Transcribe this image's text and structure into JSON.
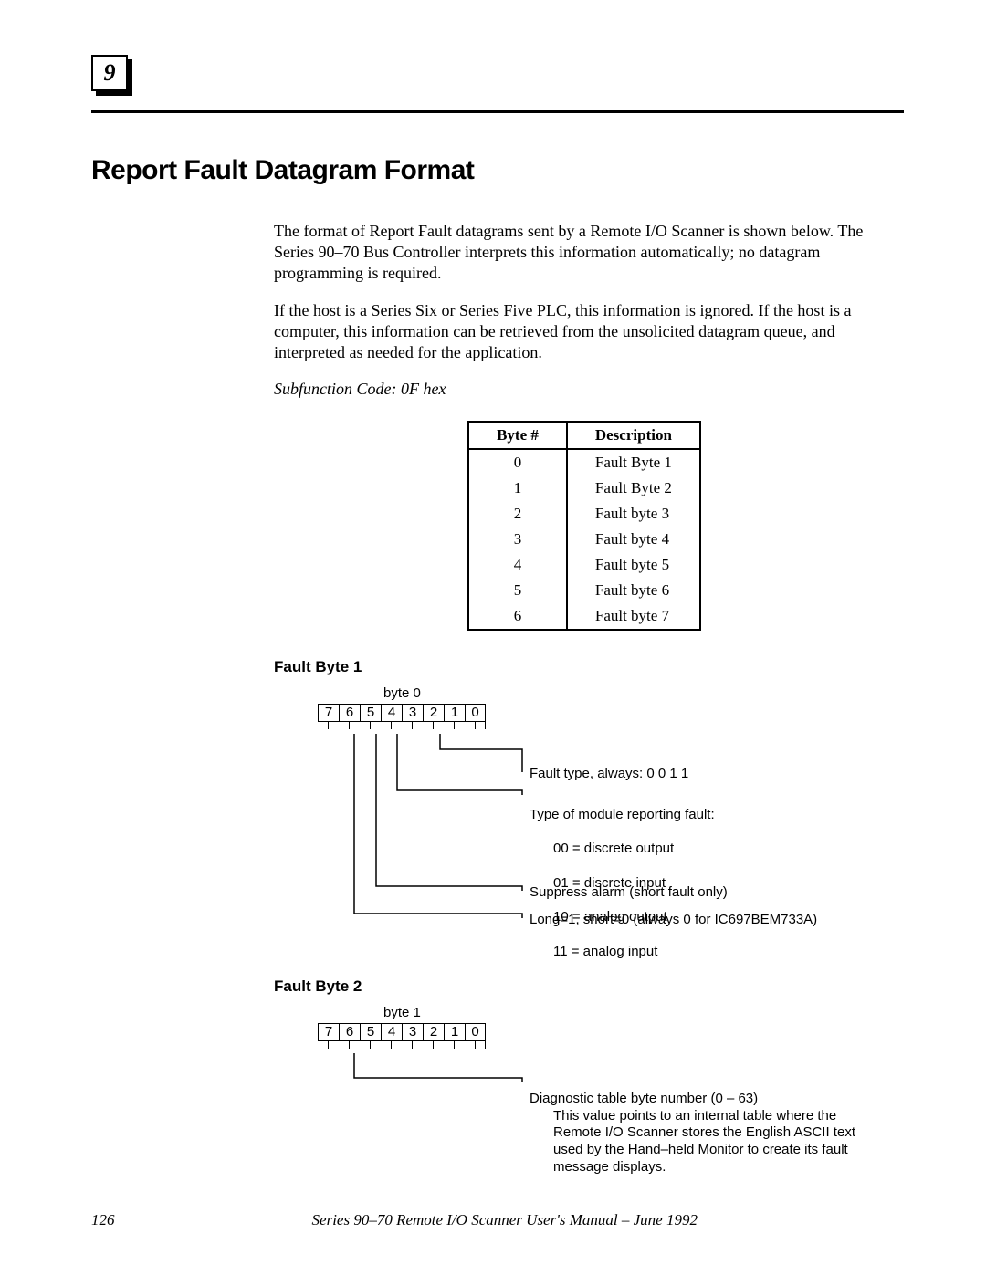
{
  "chapter": "9",
  "title": "Report Fault Datagram Format",
  "para1": "The format of Report Fault datagrams sent by a Remote I/O Scanner is shown below. The Series 90–70 Bus Controller interprets this information automatically; no datagram programming is required.",
  "para2": "If the host is a Series Six or Series Five PLC, this information is ignored.  If the host is a computer, this information can be retrieved from the unsolicited datagram queue, and interpreted as needed for the application.",
  "subfunction": "Subfunction Code: 0F hex",
  "table": {
    "headers": {
      "col1": "Byte  #",
      "col2": "Description"
    },
    "rows": [
      {
        "byte": "0",
        "desc": "Fault Byte 1"
      },
      {
        "byte": "1",
        "desc": "Fault Byte 2"
      },
      {
        "byte": "2",
        "desc": "Fault byte 3"
      },
      {
        "byte": "3",
        "desc": "Fault byte 4"
      },
      {
        "byte": "4",
        "desc": "Fault byte 5"
      },
      {
        "byte": "5",
        "desc": "Fault byte 6"
      },
      {
        "byte": "6",
        "desc": "Fault byte 7"
      }
    ]
  },
  "fault1": {
    "heading": "Fault Byte 1",
    "byte_label": "byte 0",
    "bits": [
      "7",
      "6",
      "5",
      "4",
      "3",
      "2",
      "1",
      "0"
    ],
    "notes": {
      "n1": "Fault type, always: 0 0 1 1",
      "n2": "Type of module reporting fault:",
      "n2a": "00 = discrete output",
      "n2b": "01 = discrete input",
      "n2c": "10 = analog output",
      "n2d": "11 = analog input",
      "n3": "Suppress alarm (short fault only)",
      "n4": "Long=1, short=0 (always 0 for IC697BEM733A)"
    },
    "svg": {
      "stroke": "#000",
      "stroke_width": 1.5,
      "paths": [
        "M 182 33 L 182 50 L 272 50 L 272 75",
        "M 135 33 L 135 95 L 272 95 L 272 100",
        "M 112 33 L 112 200 L 272 200 L 272 205",
        "M 88 33 L 88 230 L 272 230 L 272 235"
      ]
    }
  },
  "fault2": {
    "heading": "Fault Byte 2",
    "byte_label": "byte 1",
    "bits": [
      "7",
      "6",
      "5",
      "4",
      "3",
      "2",
      "1",
      "0"
    ],
    "notes": {
      "n1": "Diagnostic table byte number (0 – 63)",
      "n1a": "This value points to an internal table where the Remote I/O Scanner stores the English ASCII text used by the Hand–held Monitor to create its fault message displays."
    },
    "svg": {
      "stroke": "#000",
      "stroke_width": 1.5,
      "paths": [
        "M 88 33 L 88 60 L 272 60 L 272 65"
      ]
    }
  },
  "footer": {
    "page": "126",
    "text": "Series 90–70 Remote I/O Scanner User's Manual – June 1992"
  }
}
